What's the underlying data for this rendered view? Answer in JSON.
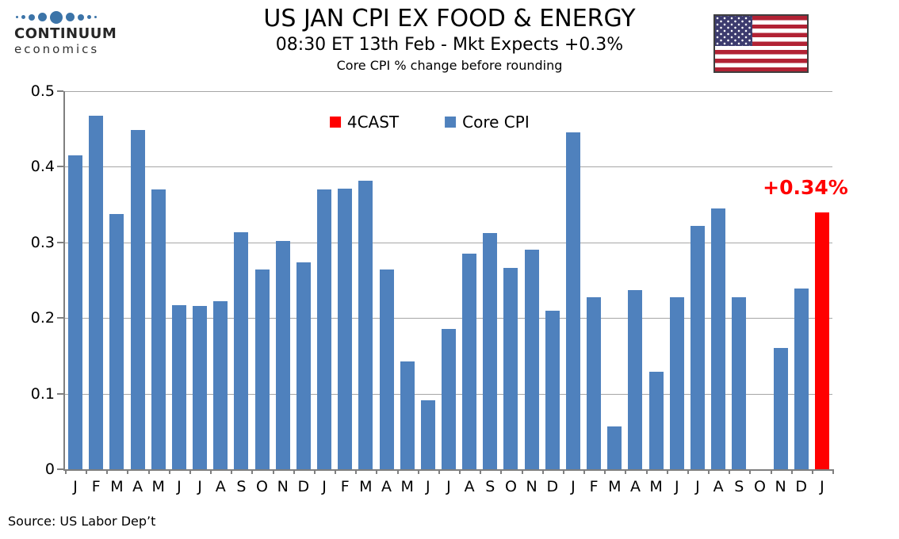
{
  "logo": {
    "name": "CONTINUUM",
    "subname": "economics"
  },
  "icons": {
    "logo_dots": "continuum-dots-icon",
    "flag": "us-flag-icon",
    "legend_forecast_swatch": "red-square-icon",
    "legend_core_swatch": "blue-square-icon"
  },
  "header": {
    "title": "US JAN CPI EX FOOD & ENERGY",
    "subtitle": "08:30 ET 13th Feb - Mkt Expects +0.3%",
    "subtitle2": "Core CPI % change before rounding"
  },
  "legend": [
    {
      "label": "4CAST",
      "color": "#ff0000"
    },
    {
      "label": "Core CPI",
      "color": "#4f81bd"
    }
  ],
  "annotation": {
    "text": "+0.34%",
    "color": "#ff0000"
  },
  "source": "Source: US Labor Dep’t",
  "colors": {
    "core_bar": "#4f81bd",
    "forecast_bar": "#ff0000",
    "gridline": "#a6a6a6",
    "axis": "#7f7f7f",
    "flag_red": "#b22234",
    "flag_blue": "#3c3b6e",
    "logo_dot_blue": "#3c74a8"
  },
  "chart_data": {
    "type": "bar",
    "title": "US JAN CPI EX FOOD & ENERGY",
    "subtitle": "08:30 ET 13th Feb - Mkt Expects +0.3%",
    "note": "Core CPI % change before rounding",
    "categories": [
      "J",
      "F",
      "M",
      "A",
      "M",
      "J",
      "J",
      "A",
      "S",
      "O",
      "N",
      "D",
      "J",
      "F",
      "M",
      "A",
      "M",
      "J",
      "J",
      "A",
      "S",
      "O",
      "N",
      "D",
      "J",
      "F",
      "M",
      "A",
      "M",
      "J",
      "J",
      "A",
      "S",
      "O",
      "N",
      "D",
      "J"
    ],
    "values": [
      0.415,
      0.467,
      0.338,
      0.449,
      0.37,
      0.217,
      0.216,
      0.222,
      0.313,
      0.264,
      0.302,
      0.274,
      0.37,
      0.371,
      0.382,
      0.264,
      0.143,
      0.091,
      0.186,
      0.285,
      0.312,
      0.266,
      0.29,
      0.21,
      0.446,
      0.227,
      0.057,
      0.237,
      0.129,
      0.228,
      0.322,
      0.345,
      0.227,
      null,
      0.16,
      0.239,
      0.34
    ],
    "series_colors": {
      "core": "#4f81bd",
      "forecast": "#ff0000"
    },
    "forecast_index": 36,
    "forecast_label": "+0.34%",
    "ylim": [
      0,
      0.5
    ],
    "yticks": [
      {
        "value": 0,
        "label": "0"
      },
      {
        "value": 0.1,
        "label": "0.1"
      },
      {
        "value": 0.2,
        "label": "0.2"
      },
      {
        "value": 0.3,
        "label": "0.3"
      },
      {
        "value": 0.4,
        "label": "0.4"
      },
      {
        "value": 0.5,
        "label": "0.5"
      }
    ],
    "grid": true,
    "legend_position": "top-center",
    "source": "Source: US Labor Dep’t"
  }
}
